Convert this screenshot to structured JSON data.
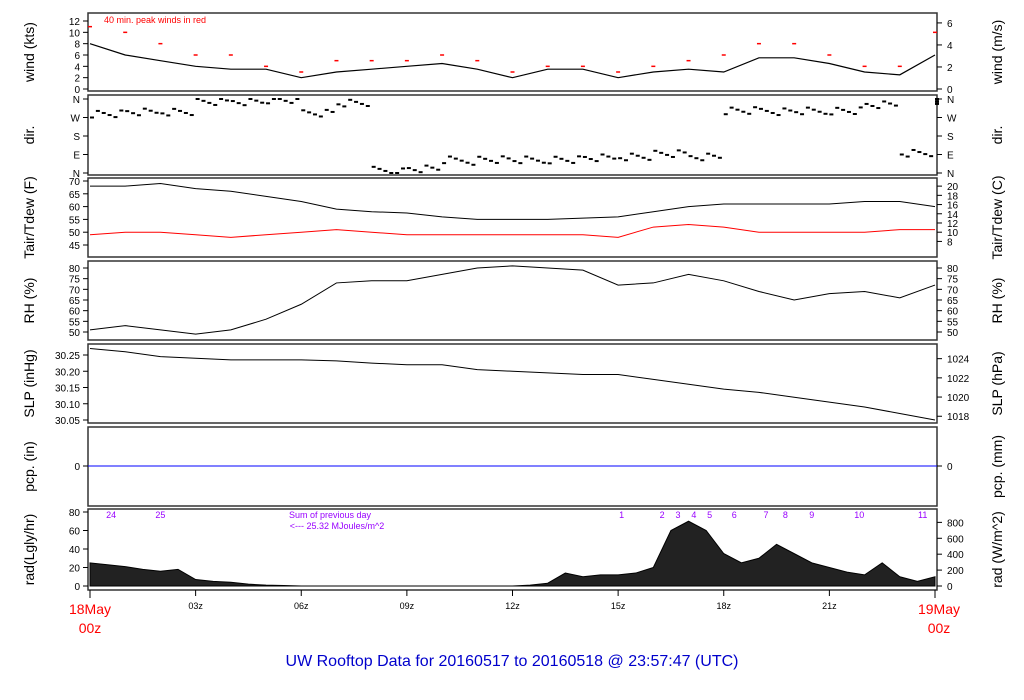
{
  "title": "UW Rooftop Data for 20160517  to  20160518 @ 23:57:47  (UTC)",
  "colors": {
    "main": "#000000",
    "peak": "#ff0000",
    "dewpoint": "#ff0000",
    "precip": "#0000ff",
    "annotation": "#9900ff",
    "date": "#ff0000",
    "title": "#0000cc"
  },
  "x_axis": {
    "unit": "hours UTC",
    "range": [
      0,
      24
    ],
    "start_label": [
      "18May",
      "00z"
    ],
    "end_label": [
      "19May",
      "00z"
    ],
    "ticks": [
      {
        "h": 3,
        "label": "03z"
      },
      {
        "h": 6,
        "label": "06z"
      },
      {
        "h": 9,
        "label": "09z"
      },
      {
        "h": 12,
        "label": "12z"
      },
      {
        "h": 15,
        "label": "15z"
      },
      {
        "h": 18,
        "label": "18z"
      },
      {
        "h": 21,
        "label": "21z"
      }
    ]
  },
  "chart_data": [
    {
      "id": "wind",
      "type": "line",
      "ylabel": "wind (kts)",
      "ylabel_right": "wind (m/s)",
      "ylim": [
        0,
        13
      ],
      "yticks": [
        "0",
        "2",
        "4",
        "6",
        "8",
        "10",
        "12"
      ],
      "yticks_right": [
        "0",
        "2",
        "4",
        "6"
      ],
      "annotation": "40 min. peak winds in red",
      "x": [
        0,
        1,
        2,
        3,
        4,
        5,
        6,
        7,
        8,
        9,
        10,
        11,
        12,
        13,
        14,
        15,
        16,
        17,
        18,
        19,
        20,
        21,
        22,
        23,
        24
      ],
      "series": [
        {
          "values": [
            8,
            6,
            5,
            4,
            3.5,
            3.5,
            2,
            3,
            3.5,
            4,
            4.5,
            3.5,
            2,
            3.5,
            3.5,
            2,
            3,
            3.5,
            3,
            5.5,
            5.5,
            4.5,
            3,
            2.5,
            6
          ]
        },
        {
          "name": "40 min. peak winds",
          "values": [
            11,
            10,
            8,
            6,
            6,
            4,
            3,
            5,
            5,
            5,
            6,
            5,
            3,
            4,
            4,
            3,
            4,
            5,
            6,
            8,
            8,
            6,
            4,
            4,
            10
          ]
        }
      ]
    },
    {
      "id": "dir",
      "type": "scatter",
      "ylabel": "dir.",
      "ylabel_right": "dir.",
      "ylim": [
        0,
        360
      ],
      "yticks": [
        "N",
        "E",
        "S",
        "W",
        "N"
      ],
      "x": [
        0,
        1,
        2,
        3,
        4,
        5,
        6,
        7,
        8,
        9,
        10,
        11,
        12,
        13,
        14,
        15,
        16,
        17,
        18,
        19,
        20,
        21,
        22,
        23,
        24
      ],
      "values": [
        290,
        295,
        300,
        345,
        350,
        355,
        295,
        340,
        10,
        20,
        60,
        65,
        60,
        65,
        70,
        80,
        90,
        80,
        300,
        300,
        300,
        305,
        330,
        100,
        350
      ]
    },
    {
      "id": "temp",
      "type": "line",
      "ylabel": "Tair/Tdew (F)",
      "ylabel_right": "Tair/Tdew (C)",
      "ylim": [
        43,
        71
      ],
      "yticks": [
        "45",
        "50",
        "55",
        "60",
        "65",
        "70"
      ],
      "yticks_right": [
        "8",
        "10",
        "12",
        "14",
        "16",
        "18",
        "20"
      ],
      "x": [
        0,
        1,
        2,
        3,
        4,
        5,
        6,
        7,
        8,
        9,
        10,
        11,
        12,
        13,
        14,
        15,
        16,
        17,
        18,
        19,
        20,
        21,
        22,
        23,
        24
      ],
      "series": [
        {
          "name": "Tair",
          "values": [
            68,
            68,
            69,
            67,
            66,
            64,
            62,
            59,
            58,
            57.5,
            56,
            55,
            55,
            55,
            55.5,
            56,
            58,
            60,
            61,
            61,
            61,
            61,
            62,
            62,
            60
          ]
        },
        {
          "name": "Tdew",
          "values": [
            49,
            50,
            50,
            49,
            48,
            49,
            50,
            51,
            50,
            49,
            49,
            49,
            49,
            49,
            49,
            48,
            52,
            53,
            52,
            50,
            50,
            50,
            50,
            51,
            51
          ]
        }
      ]
    },
    {
      "id": "rh",
      "type": "line",
      "ylabel": "RH (%)",
      "ylabel_right": "RH (%)",
      "ylim": [
        47,
        82
      ],
      "yticks": [
        "50",
        "55",
        "60",
        "65",
        "70",
        "75",
        "80"
      ],
      "x": [
        0,
        1,
        2,
        3,
        4,
        5,
        6,
        7,
        8,
        9,
        10,
        11,
        12,
        13,
        14,
        15,
        16,
        17,
        18,
        19,
        20,
        21,
        22,
        23,
        24
      ],
      "values": [
        51,
        53,
        51,
        49,
        51,
        56,
        63,
        73,
        74,
        74,
        77,
        80,
        81,
        80,
        79,
        72,
        73,
        77,
        74,
        69,
        65,
        68,
        69,
        66,
        72
      ]
    },
    {
      "id": "slp",
      "type": "line",
      "ylabel": "SLP (inHg)",
      "ylabel_right": "SLP (hPa)",
      "ylim": [
        30.04,
        30.28
      ],
      "yticks": [
        "30.05",
        "30.10",
        "30.15",
        "30.20",
        "30.25"
      ],
      "yticks_right": [
        "1018",
        "1020",
        "1022",
        "1024"
      ],
      "x": [
        0,
        1,
        2,
        3,
        4,
        5,
        6,
        7,
        8,
        9,
        10,
        11,
        12,
        13,
        14,
        15,
        16,
        17,
        18,
        19,
        20,
        21,
        22,
        23,
        24
      ],
      "values": [
        30.27,
        30.26,
        30.245,
        30.24,
        30.235,
        30.235,
        30.235,
        30.232,
        30.225,
        30.22,
        30.22,
        30.205,
        30.2,
        30.195,
        30.19,
        30.19,
        30.175,
        30.16,
        30.145,
        30.135,
        30.12,
        30.105,
        30.09,
        30.07,
        30.05
      ]
    },
    {
      "id": "pcp",
      "type": "line",
      "ylabel": "pcp. (in)",
      "ylabel_right": "pcp. (mm)",
      "yticks": [
        "0"
      ],
      "yticks_right": [
        "0"
      ],
      "x": [
        0,
        24
      ],
      "values": [
        0,
        0
      ]
    },
    {
      "id": "rad",
      "type": "area",
      "ylabel": "rad(Lgly/hr)",
      "ylabel_right": "rad (W/m^2)",
      "ylim": [
        0,
        82
      ],
      "yticks": [
        "0",
        "20",
        "40",
        "60",
        "80"
      ],
      "yticks_right": [
        "0",
        "200",
        "400",
        "600",
        "800"
      ],
      "x_step_hours": 0.5,
      "values": [
        25,
        23,
        21,
        18,
        16,
        18,
        7,
        5,
        4,
        2,
        1,
        0.5,
        0,
        0,
        0,
        0,
        0,
        0,
        0,
        0,
        0,
        0,
        0,
        0,
        0,
        1,
        3,
        14,
        10,
        12,
        12,
        14,
        20,
        60,
        70,
        60,
        35,
        25,
        30,
        45,
        35,
        25,
        20,
        15,
        12,
        25,
        10,
        5,
        10
      ],
      "hour_marks": [
        {
          "h": 0.6,
          "label": "24"
        },
        {
          "h": 2.0,
          "label": "25"
        },
        {
          "h": 15.1,
          "label": "1"
        },
        {
          "h": 16.25,
          "label": "2"
        },
        {
          "h": 16.7,
          "label": "3"
        },
        {
          "h": 17.15,
          "label": "4"
        },
        {
          "h": 17.6,
          "label": "5"
        },
        {
          "h": 18.3,
          "label": "6"
        },
        {
          "h": 19.2,
          "label": "7"
        },
        {
          "h": 19.75,
          "label": "8"
        },
        {
          "h": 20.5,
          "label": "9"
        },
        {
          "h": 21.85,
          "label": "10"
        },
        {
          "h": 23.65,
          "label": "11"
        }
      ],
      "sum_note": [
        "Sum of previous day",
        "<--- 25.32 MJoules/m^2"
      ]
    }
  ]
}
